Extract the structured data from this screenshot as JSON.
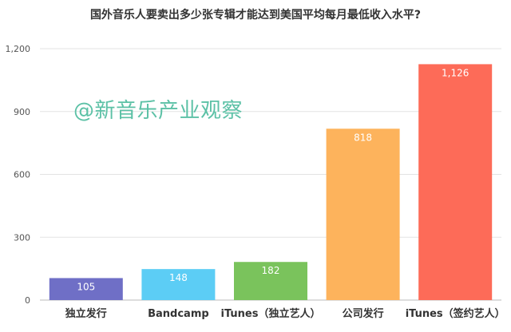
{
  "title": "国外音乐人要卖出多少张专辑才能达到美国平均每月最低收入水平?",
  "watermark": "@新音乐产业观察",
  "chart_data": {
    "type": "bar",
    "title": "国外音乐人要卖出多少张专辑才能达到美国平均每月最低收入水平?",
    "categories": [
      "独立发行",
      "Bandcamp",
      "iTunes（独立艺人）",
      "公司发行",
      "iTunes（签约艺人）"
    ],
    "values": [
      105,
      148,
      182,
      818,
      1126
    ],
    "data_labels": [
      "105",
      "148",
      "182",
      "818",
      "1,126"
    ],
    "colors": [
      "#6f6fc6",
      "#5ccdf5",
      "#7ac35c",
      "#fdb35c",
      "#fd6b58"
    ],
    "ylim": [
      0,
      1200
    ],
    "yticks": [
      0,
      300,
      600,
      900,
      1200
    ],
    "ytick_labels": [
      "0",
      "300",
      "600",
      "900",
      "1,200"
    ],
    "grid": true,
    "legend": "none",
    "xlabel": "",
    "ylabel": ""
  }
}
